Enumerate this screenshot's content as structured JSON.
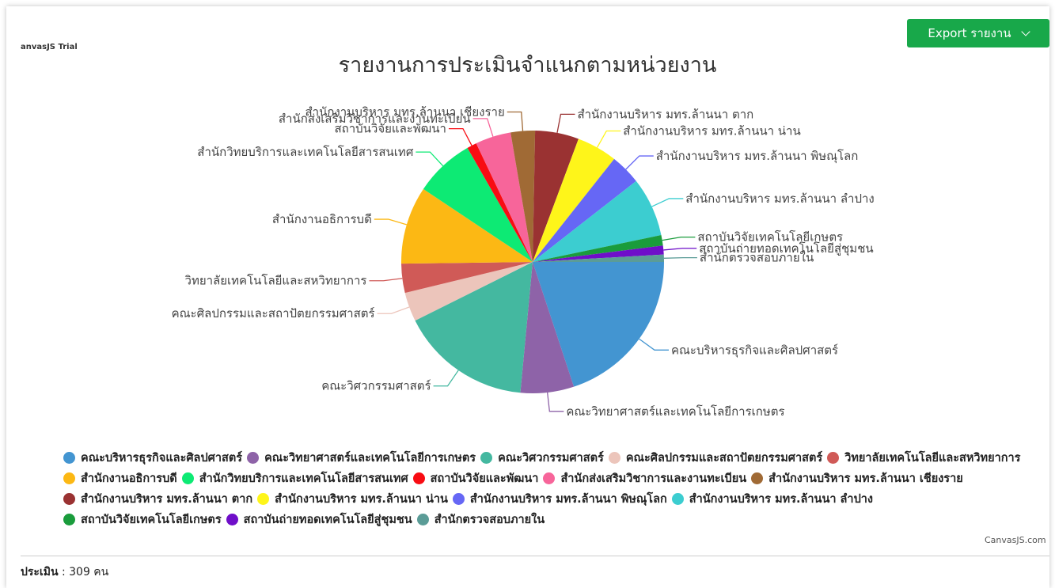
{
  "trial_text": "anvasJS Trial",
  "export_label": "Export รายงาน",
  "credit": "CanvasJS.com",
  "footer": {
    "label": "ประเมิน",
    "value": " : 309 คน"
  },
  "chart_data": {
    "type": "pie",
    "title": "รายงานการประเมินจำแนกตามหน่วยงาน",
    "legend_position": "bottom",
    "start_angle": 0,
    "slices": [
      {
        "label": "คณะบริหารธุรกิจและศิลปศาสตร์",
        "value": 20,
        "color": "#4395d1"
      },
      {
        "label": "คณะวิทยาศาสตร์และเทคโนโลยีการเกษตร",
        "value": 6.6,
        "color": "#8e63a8"
      },
      {
        "label": "คณะวิศวกรรมศาสตร์",
        "value": 16.2,
        "color": "#44b8a0"
      },
      {
        "label": "คณะศิลปกรรมและสถาปัตยกรรมศาสตร์",
        "value": 3.6,
        "color": "#ecc5bb"
      },
      {
        "label": "วิทยาลัยเทคโนโลยีและสหวิทยาการ",
        "value": 3.6,
        "color": "#d05a57"
      },
      {
        "label": "สำนักงานอธิการบดี",
        "value": 9.6,
        "color": "#fcb814"
      },
      {
        "label": "สำนักวิทยบริการและเทคโนโลยีสารสนเทศ",
        "value": 7.4,
        "color": "#0dea74"
      },
      {
        "label": "สถาบันวิจัยและพัฒนา",
        "value": 1.2,
        "color": "#f80c13"
      },
      {
        "label": "สำนักส่งเสริมวิชาการและงานทะเบียน",
        "value": 4.4,
        "color": "#f7659a"
      },
      {
        "label": "สำนักงานบริหาร มทร.ล้านนา เชียงราย",
        "value": 3,
        "color": "#a06a35"
      },
      {
        "label": "สำนักงานบริหาร มทร.ล้านนา ตาก",
        "value": 5.4,
        "color": "#9a3232"
      },
      {
        "label": "สำนักงานบริหาร มทร.ล้านนา น่าน",
        "value": 5,
        "color": "#fef51a"
      },
      {
        "label": "สำนักงานบริหาร มทร.ล้านนา พิษณุโลก",
        "value": 3.8,
        "color": "#6667f5"
      },
      {
        "label": "สำนักงานบริหาร มทร.ล้านนา ลำปาง",
        "value": 7.3,
        "color": "#3ccdd0"
      },
      {
        "label": "สถาบันวิจัยเทคโนโลยีเกษตร",
        "value": 1.3,
        "color": "#1a9c3c"
      },
      {
        "label": "สถาบันถ่ายทอดเทคโนโลยีสู่ชุมชน",
        "value": 1.1,
        "color": "#6f0ec9"
      },
      {
        "label": "สำนักตรวจสอบภายใน",
        "value": 0.9,
        "color": "#5b9c97"
      }
    ]
  }
}
